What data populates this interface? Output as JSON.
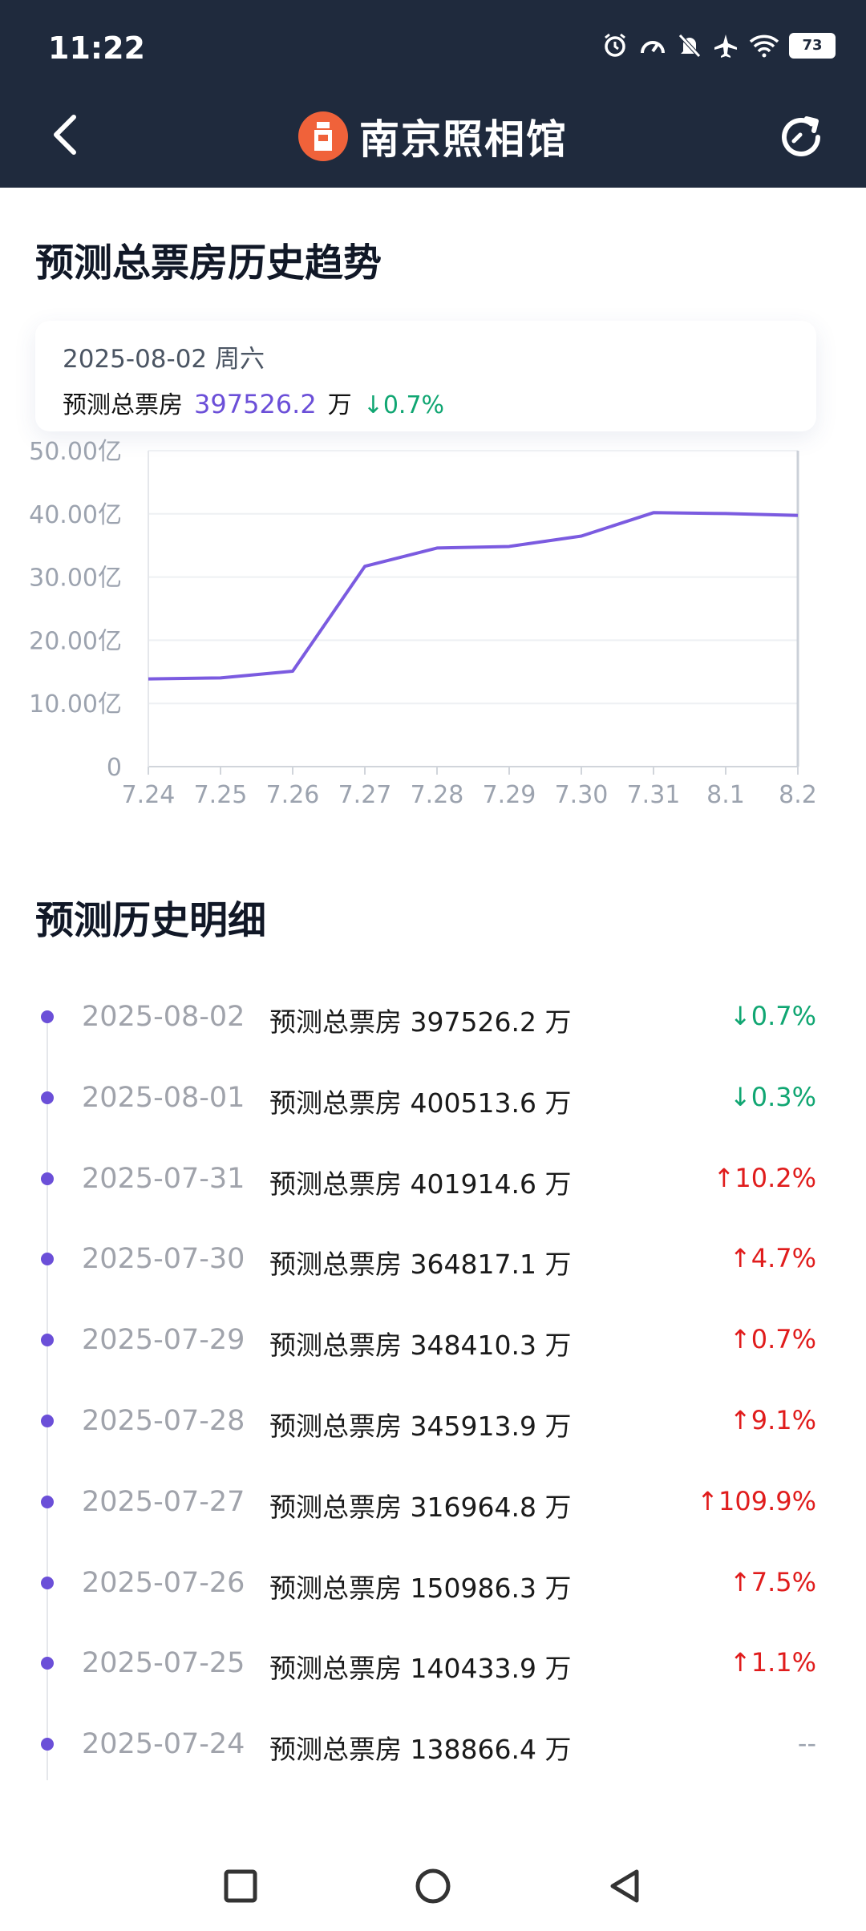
{
  "status": {
    "time": "11:22",
    "battery": "73"
  },
  "header": {
    "title": "南京照相馆"
  },
  "trend": {
    "title": "预测总票房历史趋势",
    "tooltip": {
      "date": "2025-08-02  周六",
      "label": "预测总票房",
      "value": "397526.2",
      "unit": "万",
      "change": "0.7%",
      "change_dir": "down"
    }
  },
  "chart_data": {
    "type": "line",
    "x": [
      "7.24",
      "7.25",
      "7.26",
      "7.27",
      "7.28",
      "7.29",
      "7.30",
      "7.31",
      "8.1",
      "8.2"
    ],
    "series": [
      {
        "values": [
          13.88664,
          14.04339,
          15.09863,
          31.69648,
          34.59139,
          34.84103,
          36.48171,
          40.19146,
          40.05136,
          39.75262
        ]
      }
    ],
    "yticks": [
      "0",
      "10.00亿",
      "20.00亿",
      "30.00亿",
      "40.00亿",
      "50.00亿"
    ],
    "ylim": [
      0,
      50
    ],
    "ylabel": "",
    "xlabel": "",
    "color": "#7b5be0",
    "grid": true
  },
  "history": {
    "title": "预测历史明细",
    "rows": [
      {
        "date": "2025-08-02",
        "label": "预测总票房 397526.2 万",
        "change": "0.7%",
        "dir": "down"
      },
      {
        "date": "2025-08-01",
        "label": "预测总票房 400513.6 万",
        "change": "0.3%",
        "dir": "down"
      },
      {
        "date": "2025-07-31",
        "label": "预测总票房 401914.6 万",
        "change": "10.2%",
        "dir": "up"
      },
      {
        "date": "2025-07-30",
        "label": "预测总票房 364817.1 万",
        "change": "4.7%",
        "dir": "up"
      },
      {
        "date": "2025-07-29",
        "label": "预测总票房 348410.3 万",
        "change": "0.7%",
        "dir": "up"
      },
      {
        "date": "2025-07-28",
        "label": "预测总票房 345913.9 万",
        "change": "9.1%",
        "dir": "up"
      },
      {
        "date": "2025-07-27",
        "label": "预测总票房 316964.8 万",
        "change": "109.9%",
        "dir": "up"
      },
      {
        "date": "2025-07-26",
        "label": "预测总票房 150986.3 万",
        "change": "7.5%",
        "dir": "up"
      },
      {
        "date": "2025-07-25",
        "label": "预测总票房 140433.9 万",
        "change": "1.1%",
        "dir": "up"
      },
      {
        "date": "2025-07-24",
        "label": "预测总票房 138866.4 万",
        "change": "--",
        "dir": "none"
      }
    ]
  }
}
